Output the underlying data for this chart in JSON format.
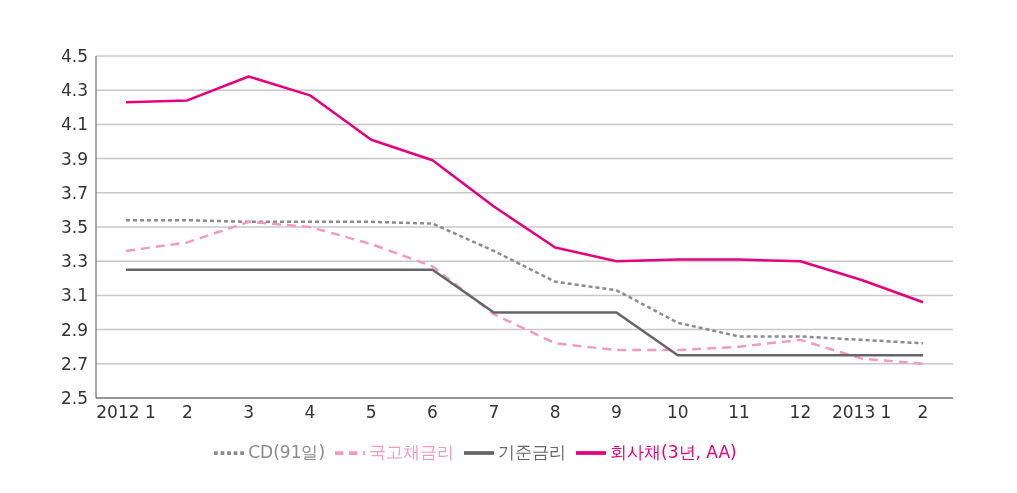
{
  "chart_data": {
    "type": "line",
    "categories": [
      "2012 1",
      "2",
      "3",
      "4",
      "5",
      "6",
      "7",
      "8",
      "9",
      "10",
      "11",
      "12",
      "2013 1",
      "2"
    ],
    "series": [
      {
        "name": "회사채(3년, AA)",
        "color": "#e6007e",
        "line_style": "solid",
        "values": [
          4.23,
          4.24,
          4.38,
          4.27,
          4.01,
          3.89,
          3.62,
          3.38,
          3.3,
          3.31,
          3.31,
          3.3,
          3.19,
          3.06
        ]
      },
      {
        "name": "CD(91일)",
        "color": "#8c8c8c",
        "line_style": "dotted",
        "values": [
          3.54,
          3.54,
          3.53,
          3.53,
          3.53,
          3.52,
          3.36,
          3.18,
          3.13,
          2.94,
          2.86,
          2.86,
          2.84,
          2.82
        ]
      },
      {
        "name": "국고채금리",
        "color": "#f49ac1",
        "line_style": "dashed",
        "values": [
          3.36,
          3.41,
          3.53,
          3.5,
          3.4,
          3.27,
          2.99,
          2.82,
          2.78,
          2.78,
          2.8,
          2.84,
          2.73,
          2.7
        ]
      },
      {
        "name": "기준금리",
        "color": "#666666",
        "line_style": "solid",
        "values": [
          3.25,
          3.25,
          3.25,
          3.25,
          3.25,
          3.25,
          3.0,
          3.0,
          3.0,
          2.75,
          2.75,
          2.75,
          2.75,
          2.75
        ]
      }
    ],
    "ylim": [
      2.5,
      4.5
    ],
    "yticks": [
      2.5,
      2.7,
      2.9,
      3.1,
      3.3,
      3.5,
      3.7,
      3.9,
      4.1,
      4.3,
      4.5
    ],
    "grid": "y",
    "legend": "bottom",
    "marker": "none"
  }
}
